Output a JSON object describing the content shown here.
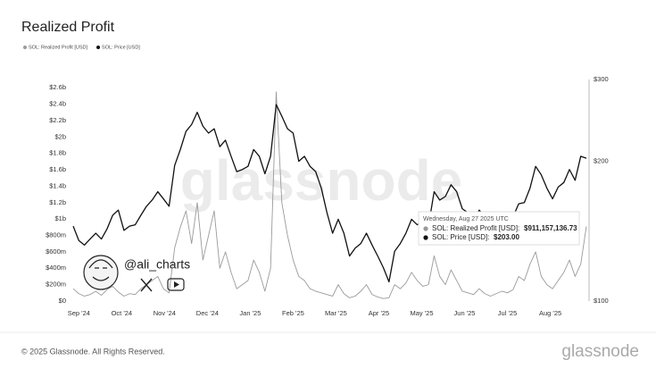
{
  "chart_data": {
    "type": "line",
    "title": "Realized Profit",
    "series": [
      {
        "name": "SOL: Realized Profit [USD]",
        "color": "#9a9a9a",
        "axis": "y",
        "values": [
          150000000.0,
          90000000.0,
          60000000.0,
          80000000.0,
          120000000.0,
          70000000.0,
          140000000.0,
          180000000.0,
          110000000.0,
          60000000.0,
          90000000.0,
          80000000.0,
          150000000.0,
          200000000.0,
          250000000.0,
          300000000.0,
          150000000.0,
          100000000.0,
          650000000.0,
          900000000.0,
          1100000000.0,
          700000000.0,
          1200000000.0,
          500000000.0,
          800000000.0,
          1100000000.0,
          400000000.0,
          600000000.0,
          350000000.0,
          150000000.0,
          200000000.0,
          250000000.0,
          500000000.0,
          350000000.0,
          120000000.0,
          400000000.0,
          2550000000.0,
          1200000000.0,
          800000000.0,
          500000000.0,
          300000000.0,
          250000000.0,
          150000000.0,
          120000000.0,
          100000000.0,
          80000000.0,
          60000000.0,
          200000000.0,
          90000000.0,
          40000000.0,
          60000000.0,
          120000000.0,
          200000000.0,
          80000000.0,
          50000000.0,
          30000000.0,
          40000000.0,
          200000000.0,
          150000000.0,
          220000000.0,
          350000000.0,
          250000000.0,
          180000000.0,
          200000000.0,
          550000000.0,
          300000000.0,
          200000000.0,
          380000000.0,
          250000000.0,
          120000000.0,
          100000000.0,
          80000000.0,
          150000000.0,
          90000000.0,
          60000000.0,
          90000000.0,
          120000000.0,
          100000000.0,
          140000000.0,
          300000000.0,
          250000000.0,
          450000000.0,
          600000000.0,
          300000000.0,
          200000000.0,
          150000000.0,
          250000000.0,
          350000000.0,
          500000000.0,
          300000000.0,
          450000000.0,
          911157136.73
        ]
      },
      {
        "name": "SOL: Price [USD]",
        "color": "#111111",
        "axis": "y2",
        "values": [
          145,
          135,
          132,
          136,
          140,
          136,
          143,
          153,
          157,
          142,
          145,
          146,
          153,
          160,
          165,
          172,
          166,
          160,
          196,
          212,
          232,
          240,
          255,
          238,
          230,
          235,
          215,
          222,
          205,
          190,
          192,
          195,
          212,
          205,
          188,
          205,
          265,
          250,
          235,
          230,
          200,
          205,
          195,
          190,
          175,
          155,
          140,
          150,
          140,
          125,
          130,
          133,
          140,
          132,
          125,
          118,
          110,
          128,
          133,
          140,
          150,
          146,
          148,
          145,
          172,
          165,
          168,
          178,
          172,
          158,
          155,
          150,
          157,
          152,
          143,
          146,
          150,
          150,
          152,
          162,
          163,
          175,
          195,
          187,
          175,
          166,
          176,
          180,
          192,
          182,
          205,
          203
        ]
      }
    ],
    "xticks": [
      "Sep '24",
      "Oct '24",
      "Nov '24",
      "Dec '24",
      "Jan '25",
      "Feb '25",
      "Mar '25",
      "Apr '25",
      "May '25",
      "Jun '25",
      "Jul '25",
      "Aug '25"
    ],
    "ylim": [
      0,
      2700000000.0
    ],
    "yticks": [
      {
        "value": 0,
        "label": "$0"
      },
      {
        "value": 200000000.0,
        "label": "$200m"
      },
      {
        "value": 400000000.0,
        "label": "$400m"
      },
      {
        "value": 600000000.0,
        "label": "$600m"
      },
      {
        "value": 800000000.0,
        "label": "$800m"
      },
      {
        "value": 1000000000.0,
        "label": "$1b"
      },
      {
        "value": 1200000000.0,
        "label": "$1.2b"
      },
      {
        "value": 1400000000.0,
        "label": "$1.4b"
      },
      {
        "value": 1600000000.0,
        "label": "$1.6b"
      },
      {
        "value": 1800000000.0,
        "label": "$1.8b"
      },
      {
        "value": 2000000000.0,
        "label": "$2b"
      },
      {
        "value": 2200000000.0,
        "label": "$2.2b"
      },
      {
        "value": 2400000000.0,
        "label": "$2.4b"
      },
      {
        "value": 2600000000.0,
        "label": "$2.6b"
      }
    ],
    "y2lim": [
      100,
      300
    ],
    "y2ticks": [
      {
        "value": 100,
        "label": "$100"
      },
      {
        "value": 200,
        "label": "$200"
      },
      {
        "value": 300,
        "label": "$300"
      }
    ],
    "y2_log": true,
    "tooltip": {
      "date": "Wednesday, Aug 27 2025 UTC",
      "items": [
        {
          "label": "SOL: Realized Profit [USD]:",
          "value_label": "$911,157,136.73"
        },
        {
          "label": "SOL: Price [USD]:",
          "value_label": "$203.00"
        }
      ]
    },
    "watermark": "glassnode",
    "handle": "@ali_charts"
  },
  "footer": {
    "copyright": "© 2025 Glassnode. All Rights Reserved.",
    "logo": "glassnode"
  }
}
